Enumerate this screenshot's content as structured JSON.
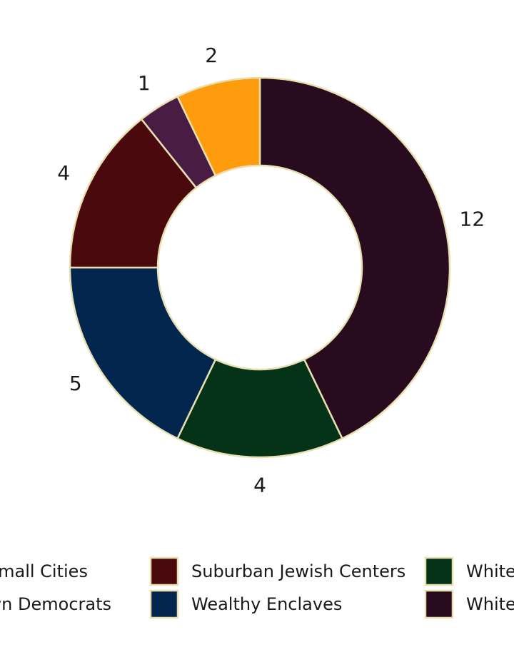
{
  "chart_data": {
    "type": "pie",
    "hole": true,
    "slice_border_color": "#e8e0b0",
    "slices": [
      {
        "label": "White Working Class",
        "value": 12,
        "color": "#280b1e"
      },
      {
        "label": "White Suburbs",
        "value": 4,
        "color": "#053318"
      },
      {
        "label": "Wealthy Enclaves",
        "value": 5,
        "color": "#03264e"
      },
      {
        "label": "Suburban Jewish Centers",
        "value": 4,
        "color": "#4a090c"
      },
      {
        "label": "Small Town Democrats",
        "value": 1,
        "color": "#481c43"
      },
      {
        "label": "Diverse Small Cities",
        "value": 2,
        "color": "#fe9c0d"
      }
    ],
    "legend": {
      "placement": "bottom",
      "items": [
        {
          "text": "Diverse Small Cities",
          "color": "#fe9c0d"
        },
        {
          "text": "Small Town Democrats",
          "color": "#481c43"
        },
        {
          "text": "Suburban Jewish Centers",
          "color": "#4a090c"
        },
        {
          "text": "Wealthy Enclaves",
          "color": "#03264e"
        },
        {
          "text": "White Suburbs",
          "color": "#053318"
        },
        {
          "text": "White Working Class",
          "color": "#280b1e"
        }
      ]
    }
  }
}
